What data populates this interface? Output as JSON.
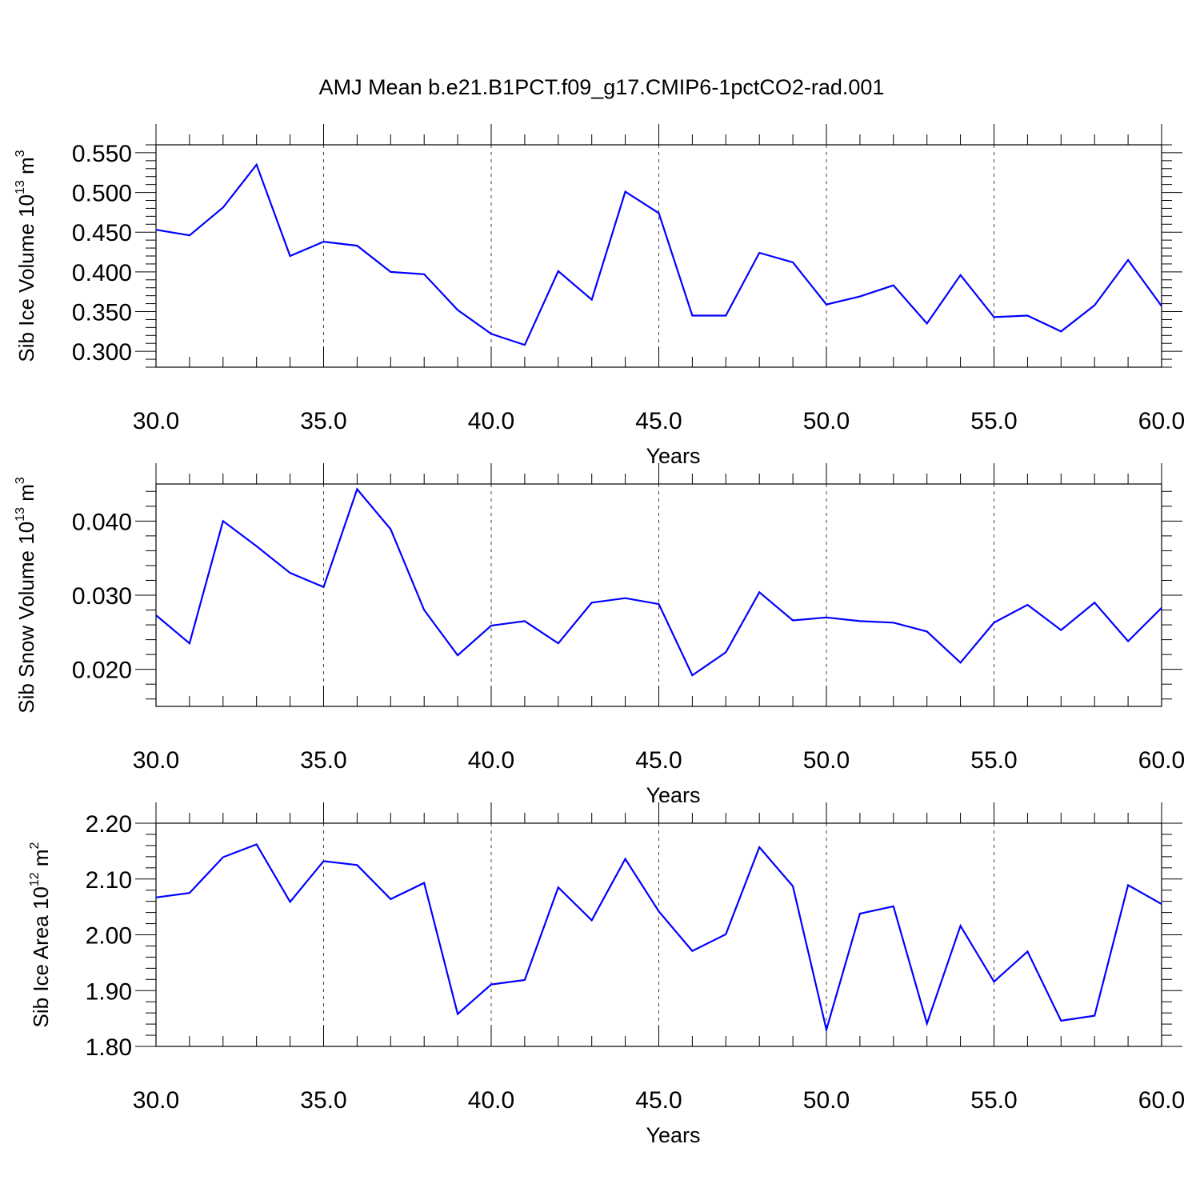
{
  "title": "AMJ Mean b.e21.B1PCT.f09_g17.CMIP6-1pctCO2-rad.001",
  "colors": {
    "series": "#0000ff",
    "axes": "#000000",
    "grid": "#444444"
  },
  "chart_data": [
    {
      "type": "line",
      "ylabel": {
        "text": "Sib Ice Volume 10",
        "sup": "13",
        "unit": " m",
        "unit_sup": "3"
      },
      "xlabel": "Years",
      "xlim": [
        30,
        60
      ],
      "ylim": [
        0.28,
        0.56
      ],
      "x_ticks": [
        "30.0",
        "35.0",
        "40.0",
        "45.0",
        "50.0",
        "55.0",
        "60.0"
      ],
      "y_ticks": [
        "0.300",
        "0.350",
        "0.400",
        "0.450",
        "0.500",
        "0.550"
      ],
      "grid": "vertical dashed at major x ticks",
      "series": [
        {
          "x": [
            30,
            31,
            32,
            33,
            34,
            35,
            36,
            37,
            38,
            39,
            40,
            41,
            42,
            43,
            44,
            45,
            46,
            47,
            48,
            49,
            50,
            51,
            52,
            53,
            54,
            55,
            56,
            57,
            58,
            59,
            60
          ],
          "values": [
            0.453,
            0.446,
            0.481,
            0.535,
            0.42,
            0.438,
            0.433,
            0.4,
            0.397,
            0.352,
            0.322,
            0.308,
            0.401,
            0.365,
            0.501,
            0.474,
            0.345,
            0.345,
            0.424,
            0.412,
            0.359,
            0.369,
            0.383,
            0.335,
            0.396,
            0.343,
            0.345,
            0.325,
            0.358,
            0.415,
            0.357
          ]
        }
      ]
    },
    {
      "type": "line",
      "ylabel": {
        "text": "Sib Snow Volume 10",
        "sup": "13",
        "unit": " m",
        "unit_sup": "3"
      },
      "xlabel": "Years",
      "xlim": [
        30,
        60
      ],
      "ylim": [
        0.015,
        0.045
      ],
      "x_ticks": [
        "30.0",
        "35.0",
        "40.0",
        "45.0",
        "50.0",
        "55.0",
        "60.0"
      ],
      "y_ticks": [
        "0.020",
        "0.030",
        "0.040"
      ],
      "grid": "vertical dashed at major x ticks",
      "series": [
        {
          "x": [
            30,
            31,
            32,
            33,
            34,
            35,
            36,
            37,
            38,
            39,
            40,
            41,
            42,
            43,
            44,
            45,
            46,
            47,
            48,
            49,
            50,
            51,
            52,
            53,
            54,
            55,
            56,
            57,
            58,
            59,
            60
          ],
          "values": [
            0.0273,
            0.0235,
            0.04,
            0.0366,
            0.033,
            0.0311,
            0.0443,
            0.0389,
            0.028,
            0.0219,
            0.0259,
            0.0265,
            0.0235,
            0.029,
            0.0296,
            0.0288,
            0.0192,
            0.0223,
            0.0304,
            0.0266,
            0.027,
            0.0265,
            0.0263,
            0.0251,
            0.0209,
            0.0263,
            0.0287,
            0.0253,
            0.029,
            0.0238,
            0.0283
          ]
        }
      ]
    },
    {
      "type": "line",
      "ylabel": {
        "text": "Sib Ice Area 10",
        "sup": "12",
        "unit": " m",
        "unit_sup": "2"
      },
      "xlabel": "Years",
      "xlim": [
        30,
        60
      ],
      "ylim": [
        1.8,
        2.2
      ],
      "x_ticks": [
        "30.0",
        "35.0",
        "40.0",
        "45.0",
        "50.0",
        "55.0",
        "60.0"
      ],
      "y_ticks": [
        "1.80",
        "1.90",
        "2.00",
        "2.10",
        "2.20"
      ],
      "grid": "vertical dashed at major x ticks",
      "series": [
        {
          "x": [
            30,
            31,
            32,
            33,
            34,
            35,
            36,
            37,
            38,
            39,
            40,
            41,
            42,
            43,
            44,
            45,
            46,
            47,
            48,
            49,
            50,
            51,
            52,
            53,
            54,
            55,
            56,
            57,
            58,
            59,
            60
          ],
          "values": [
            2.067,
            2.075,
            2.139,
            2.162,
            2.059,
            2.132,
            2.125,
            2.064,
            2.093,
            1.858,
            1.911,
            1.919,
            2.085,
            2.026,
            2.136,
            2.042,
            1.971,
            2.001,
            2.157,
            2.087,
            1.83,
            2.038,
            2.051,
            1.841,
            2.016,
            1.916,
            1.97,
            1.846,
            1.855,
            2.089,
            2.055
          ]
        }
      ]
    }
  ]
}
